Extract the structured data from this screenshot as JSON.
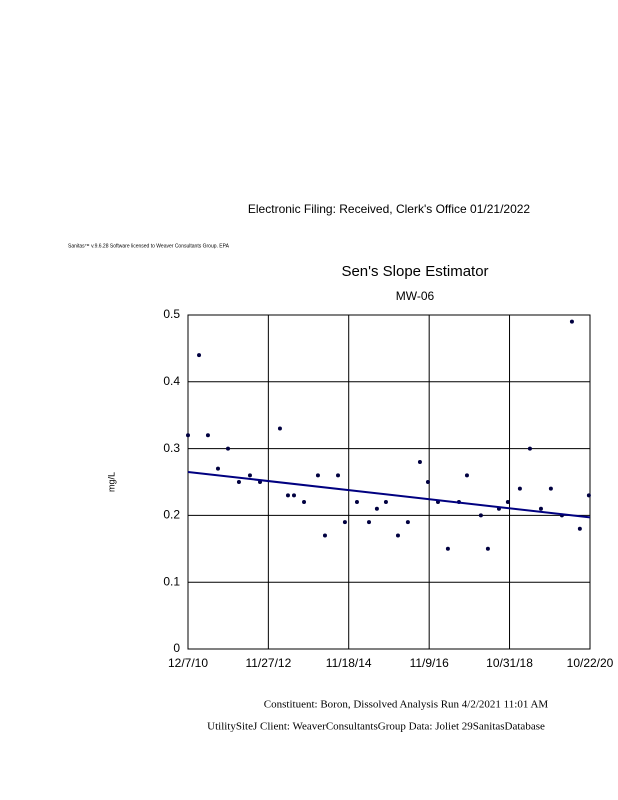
{
  "document": {
    "stamp": "Electronic Filing: Received, Clerk's Office 01/21/2022",
    "software": "Sanitas™ v.9.6.28 Software licensed to Weaver Consultants Group. EPA",
    "footer": [
      "Constituent: Boron, Dissolved Analysis Run 4/2/2021 11:01 AM",
      "UtilitySiteJ Client: WeaverConsultantsGroup Data: Joliet 29SanitasDatabase"
    ]
  },
  "chart_data": {
    "type": "scatter",
    "title": "Sen's Slope Estimator",
    "subtitle": "MW-06",
    "y_label": "mg/L",
    "xlim": [
      "2010-12-07",
      "2020-10-22"
    ],
    "xticks": [
      {
        "value": "2010-12-07",
        "label": "12/7/10"
      },
      {
        "value": "2012-11-27",
        "label": "11/27/12"
      },
      {
        "value": "2014-11-18",
        "label": "11/18/14"
      },
      {
        "value": "2016-11-09",
        "label": "11/9/16"
      },
      {
        "value": "2018-10-31",
        "label": "10/31/18"
      },
      {
        "value": "2020-10-22",
        "label": "10/22/20"
      }
    ],
    "ylim": [
      0,
      0.5
    ],
    "yticks": [
      0,
      0.1,
      0.2,
      0.3,
      0.4,
      0.5
    ],
    "grid": true,
    "series": [
      {
        "mode": "markers",
        "color": "#000040",
        "x": [
          "2010-12-07",
          "2011-03-16",
          "2011-06-04",
          "2011-09-02",
          "2011-12-01",
          "2012-03-08",
          "2012-06-15",
          "2012-09-13",
          "2013-03-11",
          "2013-05-22",
          "2013-07-15",
          "2013-10-13",
          "2014-02-15",
          "2014-04-19",
          "2014-08-14",
          "2014-10-15",
          "2015-01-31",
          "2015-05-19",
          "2015-07-29",
          "2015-10-18",
          "2016-02-03",
          "2016-05-02",
          "2016-08-18",
          "2016-10-29",
          "2017-01-27",
          "2017-04-26",
          "2017-08-03",
          "2017-10-14",
          "2018-02-16",
          "2018-04-20",
          "2018-07-28",
          "2018-10-16",
          "2019-02-01",
          "2019-05-02",
          "2019-08-09",
          "2019-11-06",
          "2020-02-13",
          "2020-05-13",
          "2020-07-23",
          "2020-10-12"
        ],
        "values": [
          0.32,
          0.44,
          0.32,
          0.27,
          0.3,
          0.25,
          0.26,
          0.25,
          0.33,
          0.23,
          0.23,
          0.22,
          0.26,
          0.17,
          0.26,
          0.19,
          0.22,
          0.19,
          0.21,
          0.22,
          0.17,
          0.19,
          0.28,
          0.25,
          0.22,
          0.15,
          0.22,
          0.26,
          0.2,
          0.15,
          0.21,
          0.22,
          0.24,
          0.3,
          0.21,
          0.24,
          0.2,
          0.49,
          0.18,
          0.23
        ]
      },
      {
        "mode": "line",
        "color": "#000080",
        "x": [
          "2010-12-07",
          "2020-10-22"
        ],
        "values": [
          0.265,
          0.197
        ]
      }
    ]
  }
}
